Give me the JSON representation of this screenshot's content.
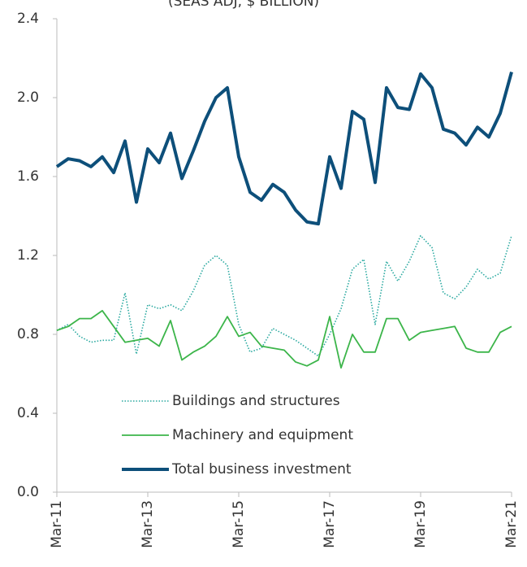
{
  "chart_data": {
    "type": "line",
    "subtitle": "(SEAS ADJ, $ BILLION)",
    "categories": [
      "Mar-11",
      null,
      null,
      null,
      null,
      null,
      null,
      null,
      "Mar-13",
      null,
      null,
      null,
      null,
      null,
      null,
      null,
      "Mar-15",
      null,
      null,
      null,
      null,
      null,
      null,
      null,
      "Mar-17",
      null,
      null,
      null,
      null,
      null,
      null,
      null,
      "Mar-19",
      null,
      null,
      null,
      null,
      null,
      null,
      null,
      "Mar-21"
    ],
    "series": [
      {
        "name": "Buildings and structures",
        "color": "#2aa9a0",
        "dash": "dotted",
        "values": [
          0.82,
          0.85,
          0.79,
          0.76,
          0.77,
          0.77,
          1.01,
          0.7,
          0.95,
          0.93,
          0.95,
          0.92,
          1.02,
          1.15,
          1.2,
          1.15,
          0.85,
          0.71,
          0.73,
          0.83,
          0.8,
          0.77,
          0.73,
          0.69,
          0.8,
          0.93,
          1.13,
          1.18,
          0.85,
          1.17,
          1.07,
          1.17,
          1.3,
          1.24,
          1.01,
          0.98,
          1.04,
          1.13,
          1.08,
          1.11,
          1.3
        ]
      },
      {
        "name": "Machinery and equipment",
        "color": "#3cb54a",
        "dash": "solid",
        "values": [
          0.82,
          0.84,
          0.88,
          0.88,
          0.92,
          0.84,
          0.76,
          0.77,
          0.78,
          0.74,
          0.87,
          0.67,
          0.71,
          0.74,
          0.79,
          0.89,
          0.79,
          0.81,
          0.74,
          0.73,
          0.72,
          0.66,
          0.64,
          0.67,
          0.89,
          0.63,
          0.8,
          0.71,
          0.71,
          0.88,
          0.88,
          0.77,
          0.81,
          0.82,
          0.83,
          0.84,
          0.73,
          0.71,
          0.71,
          0.81,
          0.84
        ]
      },
      {
        "name": "Total business investment",
        "color": "#0d4f7a",
        "dash": "thick",
        "values": [
          1.65,
          1.69,
          1.68,
          1.65,
          1.7,
          1.62,
          1.78,
          1.47,
          1.74,
          1.67,
          1.82,
          1.59,
          1.73,
          1.88,
          2.0,
          2.05,
          1.7,
          1.52,
          1.48,
          1.56,
          1.52,
          1.43,
          1.37,
          1.36,
          1.7,
          1.54,
          1.93,
          1.89,
          1.57,
          2.05,
          1.95,
          1.94,
          2.12,
          2.05,
          1.84,
          1.82,
          1.76,
          1.85,
          1.8,
          1.92,
          2.13
        ]
      }
    ],
    "ylim": [
      0,
      2.4
    ],
    "yticks": [
      {
        "value": 0,
        "label": "0.0"
      },
      {
        "value": 0.4,
        "label": "0.4"
      },
      {
        "value": 0.8,
        "label": "0.8"
      },
      {
        "value": 1.2,
        "label": "1.2"
      },
      {
        "value": 1.6,
        "label": "1.6"
      },
      {
        "value": 2.0,
        "label": "2.0"
      },
      {
        "value": 2.4,
        "label": "2.4"
      }
    ],
    "legend": "lower center",
    "grid": false
  }
}
